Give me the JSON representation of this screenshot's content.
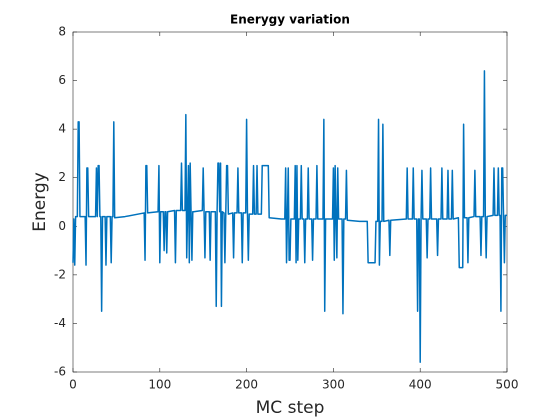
{
  "chart_data": {
    "type": "line",
    "title": "Enerygy variation",
    "xlabel": "MC step",
    "ylabel": "Energy",
    "x": [
      0,
      1,
      2,
      3,
      4,
      5,
      6,
      7,
      8,
      14,
      15,
      16,
      17,
      18,
      19,
      26,
      27,
      28,
      29,
      30,
      31,
      32,
      33,
      34,
      37,
      38,
      39,
      43,
      44,
      45,
      46,
      47,
      48,
      60,
      82,
      83,
      84,
      85,
      86,
      98,
      99,
      100,
      101,
      104,
      105,
      106,
      107,
      108,
      109,
      117,
      118,
      119,
      124,
      125,
      126,
      129,
      130,
      131,
      132,
      133,
      134,
      135,
      136,
      137,
      138,
      139,
      149,
      150,
      151,
      152,
      153,
      157,
      158,
      159,
      164,
      165,
      166,
      167,
      168,
      169,
      170,
      171,
      172,
      174,
      175,
      176,
      177,
      178,
      179,
      184,
      185,
      186,
      189,
      190,
      191,
      194,
      195,
      196,
      199,
      200,
      201,
      202,
      203,
      207,
      208,
      209,
      211,
      212,
      213,
      217,
      218,
      225,
      226,
      240,
      244,
      245,
      246,
      247,
      248,
      249,
      250,
      251,
      255,
      256,
      257,
      258,
      259,
      260,
      262,
      263,
      264,
      266,
      267,
      268,
      270,
      271,
      272,
      275,
      276,
      277,
      280,
      281,
      282,
      288,
      289,
      290,
      291,
      299,
      300,
      301,
      302,
      303,
      304,
      305,
      306,
      310,
      311,
      312,
      314,
      315,
      316,
      330,
      339,
      340,
      348,
      349,
      351,
      352,
      353,
      354,
      356,
      357,
      358,
      364,
      365,
      366,
      384,
      385,
      386,
      391,
      392,
      393,
      396,
      397,
      398,
      399,
      400,
      401,
      402,
      403,
      407,
      408,
      409,
      411,
      412,
      413,
      419,
      420,
      421,
      424,
      425,
      426,
      431,
      432,
      433,
      436,
      437,
      438,
      444,
      445,
      449,
      450,
      451,
      452,
      454,
      455,
      456,
      462,
      463,
      464,
      469,
      470,
      471,
      473,
      474,
      475,
      476,
      477,
      484,
      485,
      486,
      489,
      490,
      491,
      492,
      493,
      494,
      495,
      496,
      497,
      498,
      500
    ],
    "series": [
      {
        "name": "Energy",
        "color": "#0072bd",
        "values": [
          -1.5,
          0.3,
          -1.6,
          0.4,
          0.4,
          0.4,
          4.3,
          4.3,
          0.4,
          0.4,
          -1.6,
          2.4,
          2.4,
          0.4,
          0.4,
          0.4,
          2.4,
          0.4,
          2.5,
          2.5,
          0.4,
          0.4,
          -3.5,
          0.4,
          0.4,
          -1.6,
          0.4,
          0.4,
          -1.5,
          0.4,
          0.4,
          4.3,
          0.35,
          0.4,
          0.55,
          -1.4,
          2.5,
          2.5,
          0.55,
          0.6,
          2.5,
          -1.5,
          0.6,
          0.6,
          -1.0,
          0.6,
          0.6,
          -1.1,
          0.6,
          0.65,
          -1.5,
          0.65,
          0.65,
          2.6,
          0.65,
          0.65,
          4.6,
          -1.3,
          0.6,
          2.5,
          -1.5,
          2.6,
          0.6,
          -1.4,
          0.6,
          0.6,
          0.65,
          2.4,
          0.6,
          -1.3,
          0.6,
          0.6,
          -1.4,
          0.6,
          0.6,
          -3.3,
          0.6,
          2.6,
          2.6,
          0.6,
          2.6,
          -3.3,
          0.6,
          0.55,
          -1.5,
          0.5,
          2.5,
          2.5,
          0.5,
          0.55,
          -1.3,
          0.55,
          0.55,
          2.4,
          0.55,
          0.55,
          -1.5,
          0.55,
          0.55,
          4.4,
          0.5,
          -1.4,
          0.5,
          0.5,
          2.5,
          0.5,
          0.5,
          2.5,
          0.5,
          0.5,
          2.5,
          2.5,
          0.35,
          0.3,
          0.3,
          2.4,
          -1.5,
          0.3,
          2.4,
          -1.4,
          -1.4,
          0.3,
          0.3,
          2.5,
          -1.5,
          2.5,
          -1.4,
          0.3,
          0.3,
          2.5,
          0.3,
          0.3,
          -1.5,
          0.3,
          0.3,
          2.4,
          0.3,
          0.3,
          -1.4,
          0.3,
          0.3,
          2.5,
          0.3,
          0.3,
          4.4,
          -3.5,
          0.3,
          0.3,
          2.4,
          -1.4,
          2.5,
          0.3,
          -1.3,
          2.4,
          0.3,
          0.3,
          -3.6,
          0.3,
          0.3,
          2.3,
          0.25,
          0.2,
          0.2,
          -1.5,
          -1.5,
          0.2,
          0.2,
          4.4,
          -1.6,
          0.2,
          0.2,
          4.2,
          0.2,
          0.25,
          -1.2,
          0.25,
          0.3,
          2.4,
          0.3,
          0.3,
          2.4,
          0.3,
          0.3,
          -3.5,
          0.3,
          0.3,
          -5.6,
          0.3,
          2.3,
          0.3,
          0.3,
          -1.3,
          0.3,
          0.3,
          2.4,
          0.3,
          0.3,
          -1.2,
          0.3,
          0.3,
          2.4,
          0.3,
          0.3,
          2.3,
          0.3,
          0.3,
          2.3,
          0.3,
          0.35,
          -1.7,
          -1.7,
          4.2,
          0.35,
          0.35,
          0.35,
          -1.5,
          0.35,
          0.4,
          2.3,
          0.4,
          0.4,
          -1.2,
          0.4,
          0.4,
          6.4,
          0.4,
          -1.3,
          0.4,
          0.45,
          2.4,
          0.45,
          0.45,
          2.4,
          0.45,
          0.45,
          -3.5,
          2.4,
          2.4,
          0.45,
          -1.5,
          0.45,
          0.45
        ]
      }
    ],
    "xlim": [
      0,
      500
    ],
    "xticks": [
      0,
      100,
      200,
      300,
      400,
      500
    ],
    "ylim": [
      -6,
      8
    ],
    "yticks": [
      -6,
      -4,
      -2,
      0,
      2,
      4,
      6,
      8
    ],
    "grid": false
  }
}
